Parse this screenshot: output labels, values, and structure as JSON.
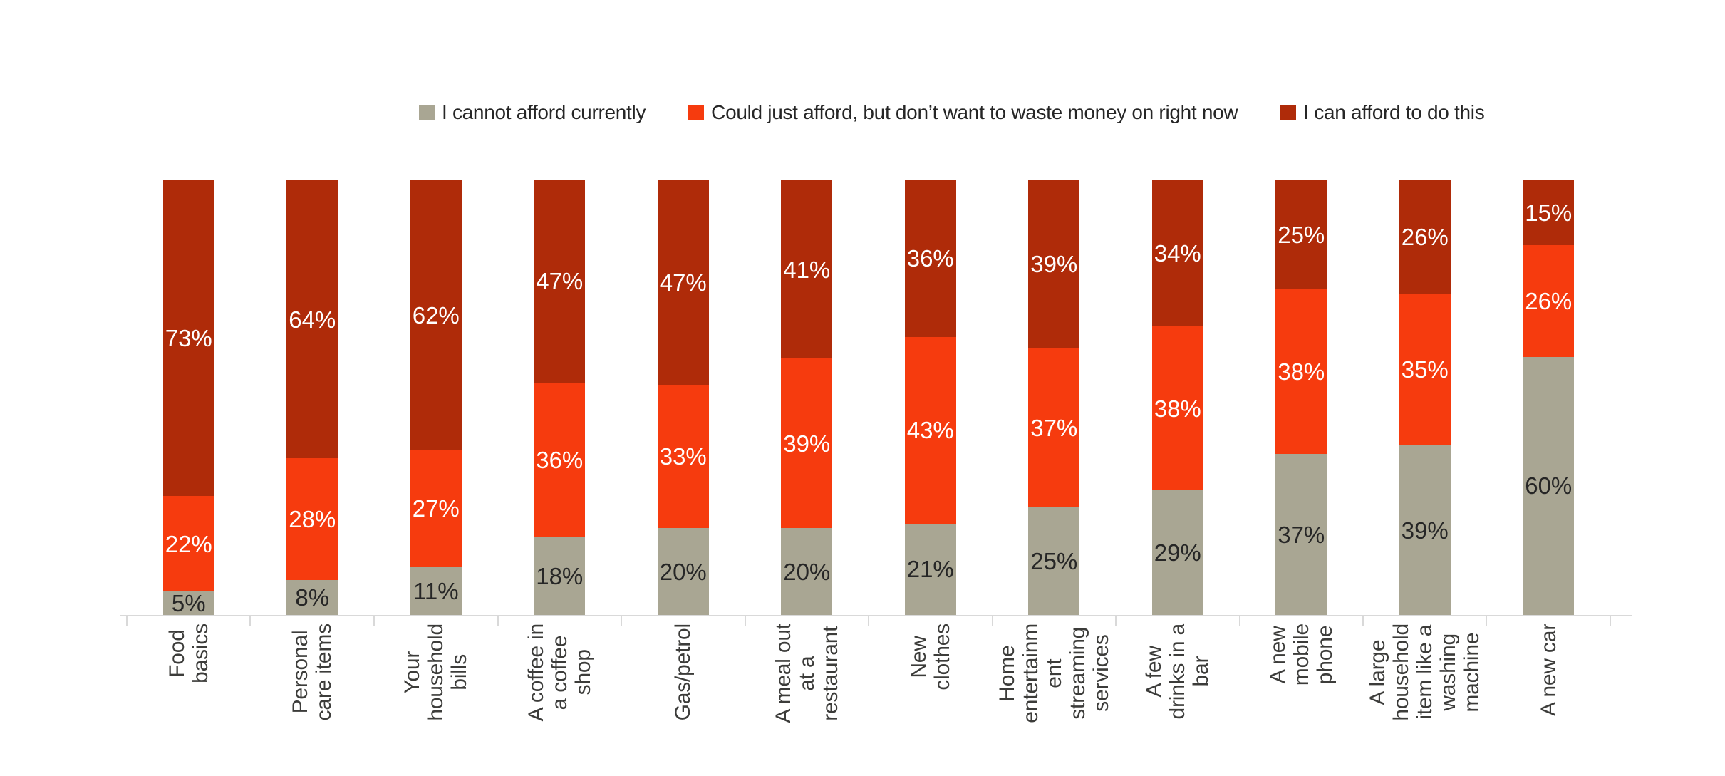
{
  "chart": {
    "legend": [
      {
        "label": "I cannot afford currently",
        "color": "#A9A693"
      },
      {
        "label": "Could just afford, but don’t want to waste money on right now",
        "color": "#F63B0E"
      },
      {
        "label": "I can afford to do this",
        "color": "#AF2B09"
      }
    ]
  },
  "chart_data": {
    "type": "bar",
    "subtype": "100-percent-stacked-column",
    "title": "",
    "xlabel": "",
    "ylabel": "",
    "ylim": [
      0,
      100
    ],
    "grid": false,
    "legend_position": "top",
    "axis_color": "#D9D9D9",
    "value_suffix": "%",
    "categories": [
      "Food\nbasics",
      "Personal\ncare items",
      "Your\nhousehold\nbills",
      "A coffee in\na coffee\nshop",
      "Gas/petrol",
      "A meal out\nat a\nrestaurant",
      "New\nclothes",
      "Home\nentertainm\nent\nstreaming\nservices",
      "A few\ndrinks in a\nbar",
      "A new\nmobile\nphone",
      "A large\nhousehold\nitem like a\nwashing\nmachine",
      "A new car"
    ],
    "categories_plain": [
      "Food basics",
      "Personal care items",
      "Your household bills",
      "A coffee in a coffee shop",
      "Gas/petrol",
      "A meal out at a restaurant",
      "New clothes",
      "Home entertainment streaming services",
      "A few drinks in a bar",
      "A new mobile phone",
      "A large household item like a washing machine",
      "A new car"
    ],
    "series": [
      {
        "name": "I cannot afford currently",
        "color": "#A9A693",
        "label_color": "#262626",
        "values": [
          5,
          8,
          11,
          18,
          20,
          20,
          21,
          25,
          29,
          37,
          39,
          60
        ]
      },
      {
        "name": "Could just afford, but don’t want to waste money on right now",
        "color": "#F63B0E",
        "label_color": "#FFFFFF",
        "values": [
          22,
          28,
          27,
          36,
          33,
          39,
          43,
          37,
          38,
          38,
          35,
          26
        ]
      },
      {
        "name": "I can afford to do this",
        "color": "#AF2B09",
        "label_color": "#FFFFFF",
        "values": [
          73,
          64,
          62,
          47,
          47,
          41,
          36,
          39,
          34,
          25,
          26,
          15
        ]
      }
    ]
  }
}
